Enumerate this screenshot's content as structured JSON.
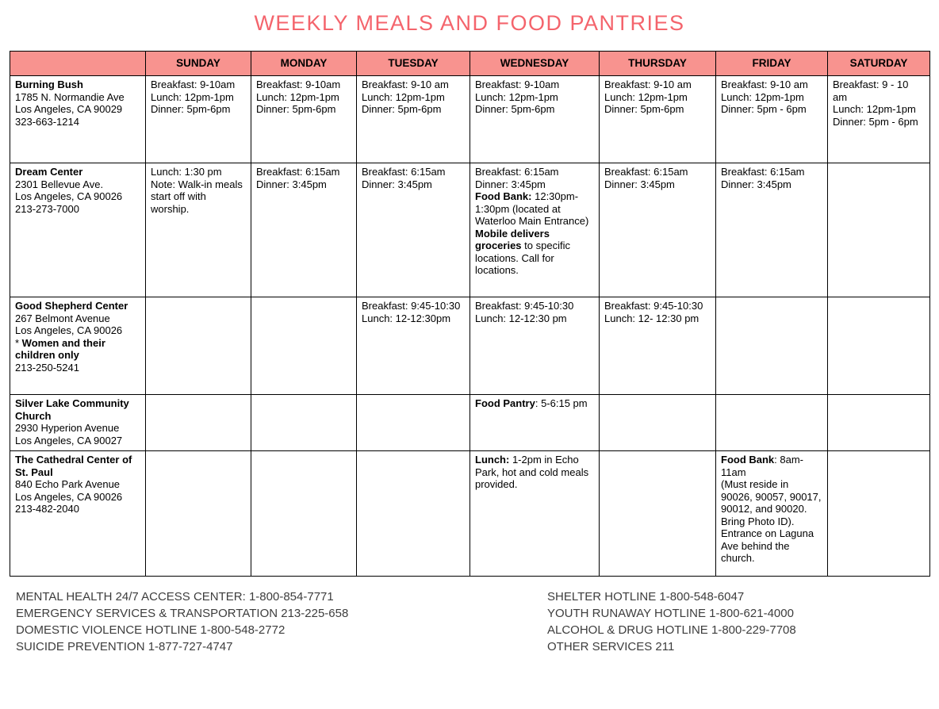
{
  "title": "WEEKLY MEALS AND FOOD PANTRIES",
  "colors": {
    "header_bg": "#F8938F",
    "title": "#F4646C",
    "border": "#000000"
  },
  "table": {
    "day_headers": [
      "SUNDAY",
      "MONDAY",
      "TUESDAY",
      "WEDNESDAY",
      "THURSDAY",
      "FRIDAY",
      "SATURDAY"
    ],
    "rows": [
      {
        "facility": {
          "highlighted": false,
          "lines": [
            [
              {
                "t": "Burning Bush",
                "b": true
              }
            ],
            [
              {
                "t": "1785 N. Normandie Ave"
              }
            ],
            [
              {
                "t": "Los Angeles, CA 90029"
              }
            ],
            [
              {
                "t": "323-663-1214"
              }
            ]
          ]
        },
        "cells": [
          [
            [
              {
                "t": "Breakfast: 9-10am"
              }
            ],
            [
              {
                "t": "Lunch: 12pm-1pm"
              }
            ],
            [
              {
                "t": "Dinner: 5pm-6pm"
              }
            ]
          ],
          [
            [
              {
                "t": "Breakfast: 9-10am"
              }
            ],
            [
              {
                "t": "Lunch: 12pm-1pm"
              }
            ],
            [
              {
                "t": "Dinner: 5pm-6pm"
              }
            ]
          ],
          [
            [
              {
                "t": "Breakfast: 9-10 am"
              }
            ],
            [
              {
                "t": "Lunch: 12pm-1pm"
              }
            ],
            [
              {
                "t": "Dinner: 5pm-6pm"
              }
            ]
          ],
          [
            [
              {
                "t": "Breakfast: 9-10am"
              }
            ],
            [
              {
                "t": "Lunch: 12pm-1pm"
              }
            ],
            [
              {
                "t": "Dinner: 5pm-6pm"
              }
            ]
          ],
          [
            [
              {
                "t": "Breakfast: 9-10 am"
              }
            ],
            [
              {
                "t": "Lunch: 12pm-1pm"
              }
            ],
            [
              {
                "t": "Dinner: 5pm-6pm"
              }
            ]
          ],
          [
            [
              {
                "t": "Breakfast: 9-10 am"
              }
            ],
            [
              {
                "t": "Lunch: 12pm-1pm"
              }
            ],
            [
              {
                "t": "Dinner: 5pm - 6pm"
              }
            ]
          ],
          [
            [
              {
                "t": "Breakfast: 9 - 10 am"
              }
            ],
            [
              {
                "t": "Lunch: 12pm-1pm"
              }
            ],
            [
              {
                "t": "Dinner: 5pm - 6pm"
              }
            ]
          ]
        ]
      },
      {
        "facility": {
          "highlighted": true,
          "lines": [
            [
              {
                "t": "Dream Center",
                "b": true
              }
            ],
            [
              {
                "t": "2301 Bellevue Ave."
              }
            ],
            [
              {
                "t": "Los Angeles, CA 90026"
              }
            ],
            [
              {
                "t": "213-273-7000"
              }
            ]
          ]
        },
        "cells": [
          [
            [
              {
                "t": "Lunch: 1:30 pm"
              }
            ],
            [
              {
                "t": "Note: Walk-in meals start off with worship."
              }
            ]
          ],
          [
            [
              {
                "t": "Breakfast: 6:15am"
              }
            ],
            [
              {
                "t": "Dinner: 3:45pm"
              }
            ]
          ],
          [
            [
              {
                "t": "Breakfast: 6:15am"
              }
            ],
            [
              {
                "t": "Dinner: 3:45pm"
              }
            ]
          ],
          [
            [
              {
                "t": "Breakfast: 6:15am"
              }
            ],
            [
              {
                "t": "Dinner: 3:45pm"
              }
            ],
            [
              {
                "t": "Food Bank:",
                "b": true
              },
              {
                "t": " 12:30pm-1:30pm (located at Waterloo Main Entrance)"
              }
            ],
            [
              {
                "t": "Mobile delivers groceries",
                "b": true
              },
              {
                "t": " to specific locations. Call for locations."
              }
            ]
          ],
          [
            [
              {
                "t": "Breakfast: 6:15am"
              }
            ],
            [
              {
                "t": "Dinner: 3:45pm"
              }
            ]
          ],
          [
            [
              {
                "t": "Breakfast: 6:15am"
              }
            ],
            [
              {
                "t": "Dinner: 3:45pm"
              }
            ]
          ],
          []
        ]
      },
      {
        "facility": {
          "highlighted": false,
          "lines": [
            [
              {
                "t": "Good Shepherd Center",
                "b": true
              }
            ],
            [
              {
                "t": "267 Belmont Avenue"
              }
            ],
            [
              {
                "t": "Los Angeles, CA 90026"
              }
            ],
            [
              {
                "t": "* "
              },
              {
                "t": "Women and their children only",
                "b": true
              }
            ],
            [
              {
                "t": "213-250-5241"
              }
            ]
          ]
        },
        "cells": [
          [],
          [],
          [
            [
              {
                "t": "Breakfast: 9:45-10:30"
              }
            ],
            [
              {
                "t": "Lunch: 12-12:30pm"
              }
            ]
          ],
          [
            [
              {
                "t": "Breakfast: 9:45-10:30"
              }
            ],
            [
              {
                "t": "Lunch: 12-12:30 pm"
              }
            ]
          ],
          [
            [
              {
                "t": "Breakfast: 9:45-10:30"
              }
            ],
            [
              {
                "t": "Lunch: 12- 12:30 pm"
              }
            ]
          ],
          [],
          []
        ]
      },
      {
        "facility": {
          "highlighted": false,
          "lines": [
            [
              {
                "t": "Silver Lake Community Church",
                "b": true
              }
            ],
            [
              {
                "t": "2930 Hyperion Avenue"
              }
            ],
            [
              {
                "t": "Los Angeles, CA 90027"
              }
            ]
          ]
        },
        "cells": [
          [],
          [],
          [],
          [
            [
              {
                "t": "Food Pantry",
                "b": true
              },
              {
                "t": ": 5-6:15 pm"
              }
            ]
          ],
          [],
          [],
          []
        ]
      },
      {
        "facility": {
          "highlighted": false,
          "lines": [
            [
              {
                "t": "The Cathedral Center of St. Paul",
                "b": true
              }
            ],
            [
              {
                "t": "840 Echo Park Avenue"
              }
            ],
            [
              {
                "t": "Los Angeles, CA 90026"
              }
            ],
            [
              {
                "t": "213-482-2040"
              }
            ]
          ]
        },
        "cells": [
          [],
          [],
          [],
          [
            [
              {
                "t": "Lunch:",
                "b": true
              },
              {
                "t": " 1-2pm in Echo Park, hot and cold meals provided."
              }
            ]
          ],
          [],
          [
            [
              {
                "t": "Food Bank",
                "b": true
              },
              {
                "t": ": 8am-11am"
              }
            ],
            [
              {
                "t": "(Must reside in 90026, 90057, 90017, 90012, and 90020. Bring Photo ID). Entrance on Laguna Ave behind the church."
              }
            ]
          ],
          []
        ]
      }
    ]
  },
  "footer": {
    "left": [
      "MENTAL HEALTH 24/7 ACCESS CENTER: 1-800-854-7771",
      "EMERGENCY SERVICES & TRANSPORTATION 213-225-658",
      "DOMESTIC VIOLENCE HOTLINE 1-800-548-2772",
      "SUICIDE PREVENTION 1-877-727-4747"
    ],
    "right": [
      "SHELTER HOTLINE 1-800-548-6047",
      "YOUTH RUNAWAY HOTLINE 1-800-621-4000",
      "ALCOHOL & DRUG HOTLINE 1-800-229-7708",
      "OTHER SERVICES 211"
    ]
  }
}
